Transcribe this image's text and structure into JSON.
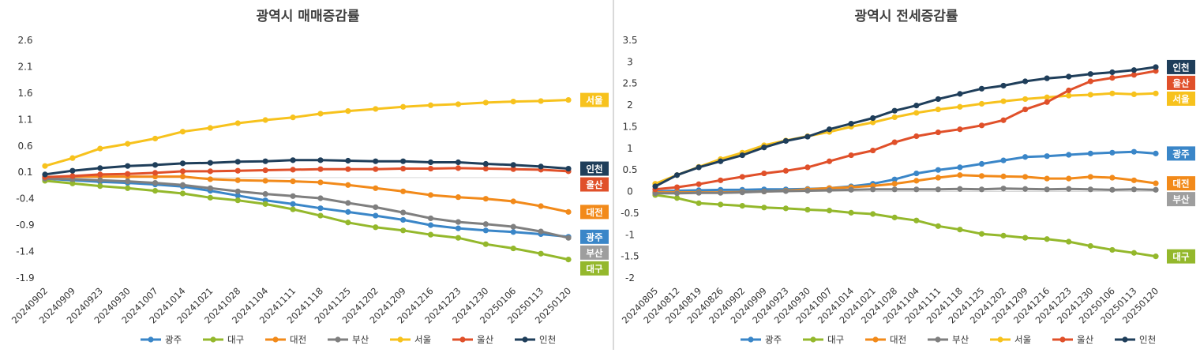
{
  "chart_data": [
    {
      "type": "line",
      "title": "광역시 매매증감률",
      "x": [
        "20240902",
        "20240909",
        "20240923",
        "20240930",
        "20241007",
        "20241014",
        "20241021",
        "20241028",
        "20241104",
        "20241111",
        "20241118",
        "20241125",
        "20241202",
        "20241209",
        "20241216",
        "20241223",
        "20241230",
        "20250106",
        "20250113",
        "20250120"
      ],
      "ylim": [
        -1.9,
        2.6
      ],
      "yticks": [
        "2.6",
        "2.1",
        "1.6",
        "1.1",
        "0.6",
        "0.1",
        "-0.4",
        "-0.9",
        "-1.4",
        "-1.9"
      ],
      "grid": false,
      "legend": "bottom",
      "series": [
        {
          "name": "광주",
          "color": "#3a86c8",
          "label_color": "#3a86c8",
          "values": [
            -0.02,
            -0.05,
            -0.08,
            -0.1,
            -0.13,
            -0.17,
            -0.25,
            -0.34,
            -0.43,
            -0.5,
            -0.58,
            -0.65,
            -0.72,
            -0.8,
            -0.9,
            -0.96,
            -1.0,
            -1.03,
            -1.07,
            -1.12
          ]
        },
        {
          "name": "대구",
          "color": "#94b82c",
          "label_color": "#94b82c",
          "values": [
            -0.06,
            -0.11,
            -0.16,
            -0.2,
            -0.25,
            -0.3,
            -0.38,
            -0.43,
            -0.5,
            -0.6,
            -0.72,
            -0.85,
            -0.94,
            -1.0,
            -1.08,
            -1.14,
            -1.26,
            -1.34,
            -1.44,
            -1.55
          ]
        },
        {
          "name": "대전",
          "color": "#f28a1a",
          "label_color": "#f28a1a",
          "values": [
            0.01,
            0.02,
            0.02,
            0.02,
            0.02,
            0.02,
            -0.03,
            -0.05,
            -0.06,
            -0.07,
            -0.09,
            -0.14,
            -0.2,
            -0.26,
            -0.33,
            -0.37,
            -0.4,
            -0.45,
            -0.54,
            -0.65
          ]
        },
        {
          "name": "부산",
          "color": "#7f7f7f",
          "label_color": "#9e9e9e",
          "values": [
            -0.02,
            -0.03,
            -0.05,
            -0.07,
            -0.1,
            -0.14,
            -0.2,
            -0.26,
            -0.31,
            -0.35,
            -0.39,
            -0.48,
            -0.56,
            -0.66,
            -0.77,
            -0.84,
            -0.88,
            -0.93,
            -1.02,
            -1.14
          ]
        },
        {
          "name": "서울",
          "color": "#f7c21d",
          "label_color": "#f7c21d",
          "values": [
            0.22,
            0.37,
            0.55,
            0.64,
            0.74,
            0.87,
            0.94,
            1.03,
            1.09,
            1.14,
            1.21,
            1.26,
            1.3,
            1.34,
            1.37,
            1.39,
            1.42,
            1.44,
            1.45,
            1.47
          ]
        },
        {
          "name": "울산",
          "color": "#e0502a",
          "label_color": "#e0502a",
          "values": [
            0.01,
            0.03,
            0.06,
            0.07,
            0.09,
            0.12,
            0.12,
            0.13,
            0.14,
            0.15,
            0.16,
            0.16,
            0.16,
            0.17,
            0.17,
            0.18,
            0.17,
            0.16,
            0.15,
            0.12
          ]
        },
        {
          "name": "인천",
          "color": "#1f3e5a",
          "label_color": "#1f3e5a",
          "values": [
            0.06,
            0.13,
            0.18,
            0.22,
            0.24,
            0.27,
            0.28,
            0.3,
            0.31,
            0.33,
            0.33,
            0.32,
            0.31,
            0.31,
            0.29,
            0.29,
            0.26,
            0.24,
            0.21,
            0.17
          ]
        }
      ]
    },
    {
      "type": "line",
      "title": "광역시 전세증감률",
      "x": [
        "20240805",
        "20240812",
        "20240819",
        "20240826",
        "20240902",
        "20240909",
        "20240923",
        "20240930",
        "20241007",
        "20241014",
        "20241021",
        "20241028",
        "20241104",
        "20241111",
        "20241118",
        "20241125",
        "20241202",
        "20241209",
        "20241216",
        "20241223",
        "20241230",
        "20250106",
        "20250113",
        "20250120"
      ],
      "ylim": [
        -2,
        3.5
      ],
      "yticks": [
        "3.5",
        "3",
        "2.5",
        "2",
        "1.5",
        "1",
        "0.5",
        "0",
        "-0.5",
        "-1",
        "-1.5",
        "-2"
      ],
      "grid": false,
      "legend": "bottom",
      "series": [
        {
          "name": "광주",
          "color": "#3a86c8",
          "label_color": "#3a86c8",
          "values": [
            0.0,
            0.02,
            0.03,
            0.04,
            0.04,
            0.05,
            0.05,
            0.06,
            0.08,
            0.12,
            0.18,
            0.28,
            0.42,
            0.5,
            0.56,
            0.64,
            0.72,
            0.8,
            0.82,
            0.85,
            0.88,
            0.9,
            0.92,
            0.88
          ]
        },
        {
          "name": "대구",
          "color": "#94b82c",
          "label_color": "#94b82c",
          "values": [
            -0.08,
            -0.15,
            -0.27,
            -0.3,
            -0.33,
            -0.37,
            -0.39,
            -0.42,
            -0.44,
            -0.49,
            -0.52,
            -0.6,
            -0.67,
            -0.8,
            -0.88,
            -0.98,
            -1.02,
            -1.07,
            -1.1,
            -1.16,
            -1.26,
            -1.35,
            -1.42,
            -1.5
          ]
        },
        {
          "name": "대전",
          "color": "#f28a1a",
          "label_color": "#f28a1a",
          "values": [
            -0.02,
            -0.02,
            -0.02,
            -0.02,
            -0.01,
            0.0,
            0.02,
            0.05,
            0.08,
            0.1,
            0.13,
            0.18,
            0.25,
            0.32,
            0.38,
            0.36,
            0.35,
            0.34,
            0.3,
            0.3,
            0.34,
            0.32,
            0.26,
            0.19
          ]
        },
        {
          "name": "부산",
          "color": "#7f7f7f",
          "label_color": "#9e9e9e",
          "values": [
            -0.04,
            -0.04,
            -0.03,
            -0.03,
            -0.02,
            0.0,
            0.01,
            0.02,
            0.03,
            0.04,
            0.05,
            0.05,
            0.05,
            0.05,
            0.06,
            0.05,
            0.07,
            0.06,
            0.05,
            0.06,
            0.05,
            0.04,
            0.05,
            0.04
          ]
        },
        {
          "name": "서울",
          "color": "#f7c21d",
          "label_color": "#f7c21d",
          "values": [
            0.18,
            0.38,
            0.57,
            0.75,
            0.9,
            1.07,
            1.18,
            1.28,
            1.38,
            1.5,
            1.6,
            1.72,
            1.82,
            1.9,
            1.96,
            2.03,
            2.09,
            2.14,
            2.18,
            2.22,
            2.24,
            2.27,
            2.25,
            2.27
          ]
        },
        {
          "name": "울산",
          "color": "#e0502a",
          "label_color": "#e0502a",
          "values": [
            0.05,
            0.1,
            0.17,
            0.26,
            0.34,
            0.42,
            0.48,
            0.56,
            0.7,
            0.84,
            0.95,
            1.14,
            1.28,
            1.37,
            1.44,
            1.53,
            1.65,
            1.9,
            2.07,
            2.34,
            2.55,
            2.63,
            2.7,
            2.79
          ]
        },
        {
          "name": "인천",
          "color": "#1f3e5a",
          "label_color": "#1f3e5a",
          "values": [
            0.12,
            0.38,
            0.56,
            0.7,
            0.84,
            1.02,
            1.17,
            1.27,
            1.44,
            1.57,
            1.7,
            1.87,
            1.99,
            2.14,
            2.26,
            2.38,
            2.45,
            2.55,
            2.62,
            2.66,
            2.72,
            2.76,
            2.81,
            2.88
          ]
        }
      ]
    }
  ]
}
